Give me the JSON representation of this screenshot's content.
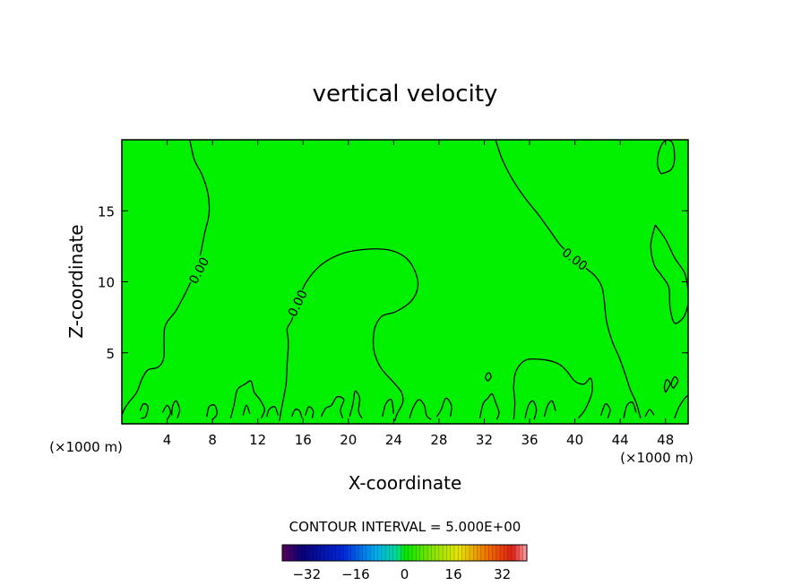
{
  "chart_data": {
    "type": "contour",
    "title": "vertical velocity",
    "xlabel": "X-coordinate",
    "ylabel": "Z-coordinate",
    "x_unit": "(×1000 m)",
    "x_unit_right": "(×1000 m)",
    "xlim": [
      0,
      50
    ],
    "ylim": [
      0,
      20
    ],
    "x_ticks": [
      4,
      8,
      12,
      16,
      20,
      24,
      28,
      32,
      36,
      40,
      44,
      48
    ],
    "y_ticks": [
      5,
      10,
      15
    ],
    "field_color": "#00f000",
    "contour_color": "#000000",
    "contour_labels": [
      {
        "text": "0.00",
        "x": 6.8,
        "y": 10.8,
        "angle": -62
      },
      {
        "text": "0.00",
        "x": 15.5,
        "y": 8.5,
        "angle": -64
      },
      {
        "text": "0.00",
        "x": 40.0,
        "y": 11.6,
        "angle": 38
      }
    ],
    "contours": [
      [
        [
          6.0,
          20.0
        ],
        [
          6.4,
          18.6
        ],
        [
          7.1,
          17.5
        ],
        [
          7.6,
          16.2
        ],
        [
          7.7,
          14.8
        ],
        [
          7.3,
          13.4
        ],
        [
          6.9,
          11.8
        ],
        [
          6.5,
          10.8
        ],
        [
          5.8,
          9.5
        ],
        [
          4.8,
          8.0
        ],
        [
          3.8,
          6.8
        ],
        [
          3.7,
          4.7
        ],
        [
          3.2,
          4.0
        ],
        [
          2.3,
          3.8
        ],
        [
          1.8,
          3.2
        ],
        [
          1.3,
          2.2
        ],
        [
          0.6,
          1.5
        ],
        [
          0.2,
          1.0
        ],
        [
          0.0,
          0.6
        ]
      ],
      [
        [
          13.9,
          0.2
        ],
        [
          14.2,
          1.5
        ],
        [
          14.5,
          2.8
        ],
        [
          14.6,
          4.3
        ],
        [
          14.7,
          5.7
        ],
        [
          14.6,
          6.7
        ],
        [
          15.0,
          7.3
        ],
        [
          15.5,
          8.6
        ],
        [
          16.3,
          10.0
        ],
        [
          17.6,
          11.2
        ],
        [
          19.5,
          12.0
        ],
        [
          21.8,
          12.3
        ],
        [
          23.8,
          12.2
        ],
        [
          25.2,
          11.6
        ],
        [
          26.0,
          10.5
        ],
        [
          26.1,
          9.5
        ],
        [
          25.5,
          8.6
        ],
        [
          24.2,
          7.9
        ],
        [
          23.0,
          7.6
        ],
        [
          22.4,
          6.9
        ],
        [
          22.2,
          6.0
        ],
        [
          22.3,
          5.0
        ],
        [
          22.9,
          3.9
        ],
        [
          24.0,
          2.9
        ],
        [
          24.7,
          2.2
        ],
        [
          24.8,
          1.5
        ],
        [
          24.3,
          0.7
        ],
        [
          24.1,
          0.2
        ]
      ],
      [
        [
          33.0,
          20.0
        ],
        [
          33.6,
          18.6
        ],
        [
          34.5,
          17.2
        ],
        [
          35.6,
          15.9
        ],
        [
          36.8,
          14.7
        ],
        [
          37.8,
          13.6
        ],
        [
          38.7,
          12.6
        ],
        [
          39.6,
          11.9
        ],
        [
          40.9,
          11.0
        ],
        [
          41.8,
          10.4
        ],
        [
          42.4,
          9.6
        ],
        [
          42.6,
          8.6
        ],
        [
          42.8,
          7.2
        ],
        [
          43.3,
          5.8
        ],
        [
          43.9,
          4.7
        ],
        [
          44.4,
          3.6
        ],
        [
          44.9,
          2.4
        ],
        [
          45.4,
          1.5
        ],
        [
          45.8,
          0.4
        ]
      ],
      [
        [
          34.6,
          0.3
        ],
        [
          34.7,
          1.5
        ],
        [
          34.6,
          2.6
        ],
        [
          34.8,
          3.7
        ],
        [
          35.7,
          4.5
        ],
        [
          37.4,
          4.5
        ],
        [
          38.6,
          4.2
        ],
        [
          39.3,
          3.7
        ],
        [
          40.0,
          3.0
        ],
        [
          40.8,
          2.8
        ],
        [
          41.4,
          3.2
        ],
        [
          41.5,
          2.2
        ],
        [
          40.9,
          1.0
        ],
        [
          40.3,
          0.4
        ]
      ],
      [
        [
          47.1,
          14.0
        ],
        [
          48.0,
          13.0
        ],
        [
          48.8,
          11.7
        ],
        [
          49.7,
          10.6
        ],
        [
          50.0,
          9.4
        ]
      ],
      [
        [
          50.0,
          8.4
        ],
        [
          49.6,
          7.5
        ],
        [
          48.8,
          7.1
        ],
        [
          48.4,
          8.2
        ],
        [
          48.3,
          9.6
        ],
        [
          47.6,
          10.5
        ],
        [
          47.0,
          11.2
        ],
        [
          46.7,
          12.6
        ],
        [
          47.1,
          14.0
        ]
      ],
      [
        [
          47.6,
          17.6
        ],
        [
          48.5,
          17.9
        ],
        [
          48.8,
          18.7
        ],
        [
          48.6,
          19.8
        ],
        [
          47.9,
          19.9
        ],
        [
          47.4,
          19.1
        ],
        [
          47.3,
          18.2
        ],
        [
          47.6,
          17.6
        ]
      ],
      [
        [
          48.0,
          2.2
        ],
        [
          48.4,
          2.8
        ],
        [
          48.1,
          3.1
        ],
        [
          47.9,
          2.6
        ],
        [
          48.0,
          2.2
        ]
      ],
      [
        [
          48.7,
          2.5
        ],
        [
          49.1,
          3.0
        ],
        [
          48.8,
          3.3
        ],
        [
          48.5,
          2.8
        ],
        [
          48.7,
          2.5
        ]
      ],
      [
        [
          32.3,
          3.0
        ],
        [
          32.6,
          3.3
        ],
        [
          32.4,
          3.6
        ],
        [
          32.1,
          3.3
        ],
        [
          32.3,
          3.0
        ]
      ],
      [
        [
          1.6,
          0.9
        ],
        [
          1.9,
          1.4
        ],
        [
          2.3,
          1.2
        ],
        [
          2.1,
          0.5
        ],
        [
          1.7,
          0.4
        ]
      ],
      [
        [
          3.6,
          0.8
        ],
        [
          4.0,
          1.3
        ],
        [
          4.3,
          0.8
        ],
        [
          4.0,
          0.3
        ]
      ],
      [
        [
          4.4,
          0.6
        ],
        [
          4.5,
          1.3
        ],
        [
          4.8,
          1.6
        ],
        [
          5.1,
          1.0
        ],
        [
          4.9,
          0.4
        ]
      ],
      [
        [
          7.5,
          0.5
        ],
        [
          7.7,
          1.2
        ],
        [
          8.2,
          1.3
        ],
        [
          8.4,
          0.7
        ],
        [
          8.0,
          0.3
        ]
      ],
      [
        [
          9.6,
          0.4
        ],
        [
          9.9,
          1.3
        ],
        [
          10.2,
          2.4
        ],
        [
          10.9,
          2.8
        ],
        [
          11.4,
          3.0
        ],
        [
          11.7,
          2.2
        ],
        [
          12.2,
          1.7
        ],
        [
          12.6,
          1.0
        ],
        [
          12.3,
          0.4
        ]
      ],
      [
        [
          10.7,
          0.6
        ],
        [
          11.0,
          1.3
        ],
        [
          11.3,
          0.7
        ]
      ],
      [
        [
          12.8,
          0.5
        ],
        [
          13.0,
          1.0
        ],
        [
          13.5,
          1.2
        ],
        [
          13.8,
          0.6
        ]
      ],
      [
        [
          15.0,
          0.5
        ],
        [
          15.3,
          1.0
        ],
        [
          15.7,
          0.9
        ],
        [
          15.9,
          0.4
        ]
      ],
      [
        [
          16.2,
          0.6
        ],
        [
          16.5,
          1.2
        ],
        [
          16.9,
          0.9
        ],
        [
          16.8,
          0.4
        ]
      ],
      [
        [
          17.6,
          0.5
        ],
        [
          18.0,
          1.1
        ],
        [
          18.5,
          1.3
        ],
        [
          19.0,
          1.9
        ],
        [
          19.6,
          1.7
        ],
        [
          19.3,
          1.0
        ],
        [
          19.5,
          0.4
        ]
      ],
      [
        [
          20.1,
          0.5
        ],
        [
          20.4,
          1.4
        ],
        [
          20.6,
          2.3
        ],
        [
          21.0,
          1.8
        ],
        [
          20.9,
          0.9
        ],
        [
          21.2,
          0.4
        ]
      ],
      [
        [
          23.0,
          0.5
        ],
        [
          23.3,
          1.4
        ],
        [
          23.8,
          1.7
        ],
        [
          24.0,
          0.7
        ]
      ],
      [
        [
          25.4,
          0.4
        ],
        [
          25.7,
          1.1
        ],
        [
          26.2,
          1.7
        ],
        [
          26.7,
          1.3
        ],
        [
          26.9,
          0.6
        ],
        [
          27.3,
          0.3
        ]
      ],
      [
        [
          27.8,
          0.5
        ],
        [
          28.2,
          1.0
        ],
        [
          28.6,
          1.8
        ],
        [
          29.1,
          1.3
        ],
        [
          29.0,
          0.5
        ]
      ],
      [
        [
          31.6,
          0.4
        ],
        [
          31.9,
          1.4
        ],
        [
          32.3,
          1.8
        ],
        [
          32.7,
          2.1
        ],
        [
          33.0,
          1.5
        ],
        [
          33.3,
          0.8
        ],
        [
          33.1,
          0.3
        ]
      ],
      [
        [
          35.6,
          0.4
        ],
        [
          35.9,
          1.3
        ],
        [
          36.3,
          1.6
        ],
        [
          36.6,
          1.0
        ],
        [
          36.4,
          0.3
        ]
      ],
      [
        [
          37.3,
          0.5
        ],
        [
          37.6,
          1.3
        ],
        [
          38.0,
          1.6
        ],
        [
          38.3,
          0.9
        ]
      ],
      [
        [
          42.3,
          0.6
        ],
        [
          42.7,
          1.4
        ],
        [
          43.1,
          1.0
        ],
        [
          42.9,
          0.4
        ]
      ],
      [
        [
          44.3,
          0.4
        ],
        [
          44.6,
          1.3
        ],
        [
          45.1,
          1.5
        ],
        [
          45.4,
          0.8
        ]
      ],
      [
        [
          46.2,
          0.5
        ],
        [
          46.6,
          1.0
        ],
        [
          47.0,
          0.6
        ]
      ],
      [
        [
          48.8,
          0.4
        ],
        [
          49.2,
          1.2
        ],
        [
          49.7,
          1.8
        ],
        [
          50.0,
          2.0
        ]
      ]
    ],
    "colorbar": {
      "title": "CONTOUR INTERVAL = 5.000E+00",
      "range": [
        -40,
        40
      ],
      "ticks": [
        -32,
        -16,
        0,
        16,
        32
      ],
      "tick_labels": [
        "−32",
        "−16",
        "0",
        "16",
        "32"
      ]
    }
  }
}
